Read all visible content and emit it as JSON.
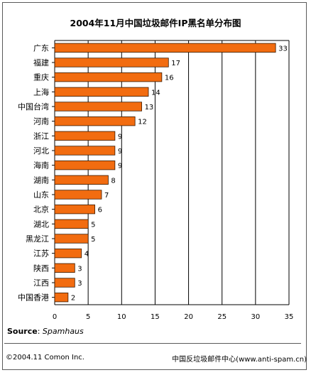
{
  "chart_data": {
    "type": "bar",
    "orientation": "horizontal",
    "title": "2004年11月中国垃圾邮件IP黑名单分布图",
    "categories": [
      "广东",
      "福建",
      "重庆",
      "上海",
      "中国台湾",
      "河南",
      "浙江",
      "河北",
      "海南",
      "湖南",
      "山东",
      "北京",
      "湖北",
      "黑龙江",
      "江苏",
      "陕西",
      "江西",
      "中国香港"
    ],
    "values": [
      33,
      17,
      16,
      14,
      13,
      12,
      9,
      9,
      9,
      8,
      7,
      6,
      5,
      5,
      4,
      3,
      3,
      2
    ],
    "xlim": [
      0,
      35
    ],
    "xticks": [
      "0",
      "5",
      "10",
      "15",
      "20",
      "25",
      "30",
      "35"
    ],
    "grid": true,
    "bar_color": "#f26c10"
  },
  "source": {
    "label": "Source",
    "value": "Spamhaus"
  },
  "footer": {
    "left": "©2004.11 Comon Inc.",
    "right": "中国反垃圾邮件中心(www.anti-spam.cn)"
  }
}
